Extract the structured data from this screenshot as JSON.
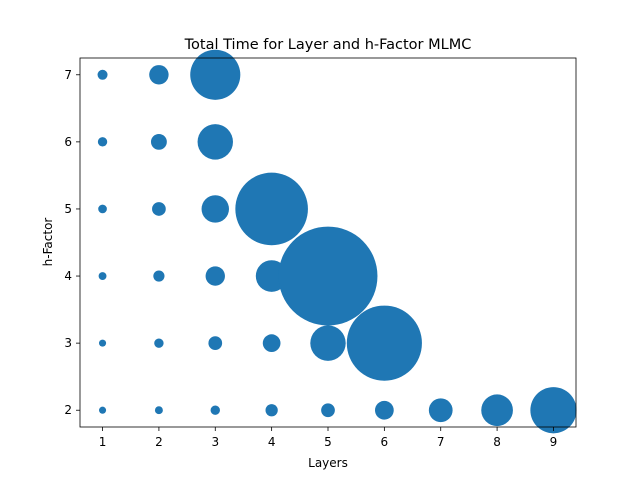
{
  "chart_data": {
    "type": "scatter",
    "title": "Total Time for Layer and h-Factor MLMC",
    "xlabel": "Layers",
    "ylabel": "h-Factor",
    "xlim": [
      0.6,
      9.4
    ],
    "ylim": [
      1.75,
      7.25
    ],
    "xticks": [
      "1",
      "2",
      "3",
      "4",
      "5",
      "6",
      "7",
      "8",
      "9"
    ],
    "yticks": [
      "2",
      "3",
      "4",
      "5",
      "6",
      "7"
    ],
    "grid": false,
    "color": "#1f77b4",
    "note_size": "bubble size encodes total time (relative)",
    "points": [
      {
        "x": 1,
        "y": 7,
        "size": 0.8
      },
      {
        "x": 2,
        "y": 7,
        "size": 3.0
      },
      {
        "x": 3,
        "y": 7,
        "size": 20.0
      },
      {
        "x": 1,
        "y": 6,
        "size": 0.7
      },
      {
        "x": 2,
        "y": 6,
        "size": 2.0
      },
      {
        "x": 3,
        "y": 6,
        "size": 10.0
      },
      {
        "x": 1,
        "y": 5,
        "size": 0.6
      },
      {
        "x": 2,
        "y": 5,
        "size": 1.5
      },
      {
        "x": 3,
        "y": 5,
        "size": 6.0
      },
      {
        "x": 4,
        "y": 5,
        "size": 42.0
      },
      {
        "x": 1,
        "y": 4,
        "size": 0.5
      },
      {
        "x": 2,
        "y": 4,
        "size": 1.0
      },
      {
        "x": 3,
        "y": 4,
        "size": 3.0
      },
      {
        "x": 4,
        "y": 4,
        "size": 8.0
      },
      {
        "x": 5,
        "y": 4,
        "size": 78.0
      },
      {
        "x": 1,
        "y": 3,
        "size": 0.4
      },
      {
        "x": 2,
        "y": 3,
        "size": 0.7
      },
      {
        "x": 3,
        "y": 3,
        "size": 1.5
      },
      {
        "x": 4,
        "y": 3,
        "size": 2.5
      },
      {
        "x": 5,
        "y": 3,
        "size": 10.0
      },
      {
        "x": 6,
        "y": 3,
        "size": 45.0
      },
      {
        "x": 1,
        "y": 2,
        "size": 0.4
      },
      {
        "x": 2,
        "y": 2,
        "size": 0.5
      },
      {
        "x": 3,
        "y": 2,
        "size": 0.7
      },
      {
        "x": 4,
        "y": 2,
        "size": 1.2
      },
      {
        "x": 5,
        "y": 2,
        "size": 1.5
      },
      {
        "x": 6,
        "y": 2,
        "size": 2.8
      },
      {
        "x": 7,
        "y": 2,
        "size": 4.5
      },
      {
        "x": 8,
        "y": 2,
        "size": 8.0
      },
      {
        "x": 9,
        "y": 2,
        "size": 17.0
      }
    ]
  }
}
